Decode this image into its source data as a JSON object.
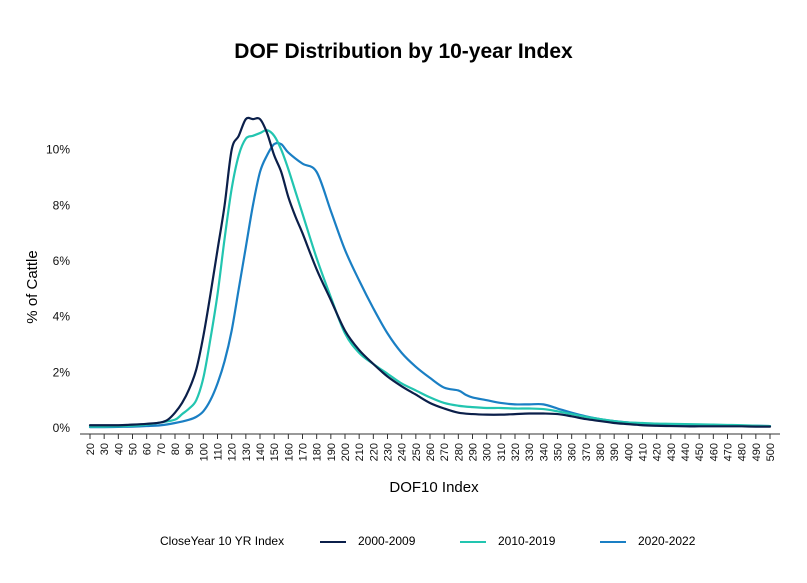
{
  "chart_data": {
    "type": "line",
    "title": "DOF Distribution by 10-year Index",
    "xlabel": "DOF10 Index",
    "ylabel": "% of Cattle",
    "x": [
      20,
      30,
      40,
      50,
      60,
      70,
      80,
      90,
      100,
      110,
      120,
      130,
      140,
      150,
      160,
      170,
      180,
      190,
      200,
      210,
      220,
      230,
      240,
      250,
      260,
      270,
      280,
      290,
      300,
      310,
      320,
      330,
      340,
      350,
      360,
      370,
      380,
      390,
      400,
      410,
      420,
      430,
      440,
      450,
      460,
      470,
      480,
      490,
      500
    ],
    "xlim": [
      20,
      500
    ],
    "ylim": [
      0,
      11.5
    ],
    "y_ticks": [
      0,
      2,
      4,
      6,
      8,
      10
    ],
    "y_tick_labels": [
      "0%",
      "2%",
      "4%",
      "6%",
      "8%",
      "10%"
    ],
    "grid": false,
    "legend": {
      "title": "CloseYear 10 YR Index",
      "position": "bottom"
    },
    "series": [
      {
        "name": "2000-2009",
        "color": "#0b1f4a",
        "x": [
          20,
          30,
          40,
          50,
          60,
          70,
          75,
          80,
          85,
          90,
          95,
          100,
          105,
          110,
          115,
          120,
          125,
          130,
          135,
          140,
          145,
          150,
          155,
          160,
          165,
          170,
          180,
          190,
          200,
          210,
          220,
          230,
          240,
          250,
          260,
          270,
          280,
          290,
          300,
          310,
          320,
          330,
          340,
          350,
          360,
          370,
          380,
          390,
          400,
          410,
          420,
          430,
          440,
          450,
          460,
          470,
          480,
          490,
          500
        ],
        "y": [
          0.1,
          0.1,
          0.1,
          0.12,
          0.15,
          0.2,
          0.3,
          0.55,
          0.9,
          1.4,
          2.1,
          3.3,
          4.8,
          6.4,
          8.0,
          10.0,
          10.5,
          11.1,
          11.1,
          11.1,
          10.6,
          9.8,
          9.2,
          8.3,
          7.6,
          7.0,
          5.7,
          4.6,
          3.5,
          2.8,
          2.3,
          1.85,
          1.5,
          1.2,
          0.9,
          0.7,
          0.55,
          0.5,
          0.48,
          0.48,
          0.5,
          0.52,
          0.52,
          0.5,
          0.42,
          0.32,
          0.25,
          0.18,
          0.14,
          0.1,
          0.08,
          0.07,
          0.06,
          0.06,
          0.06,
          0.06,
          0.06,
          0.05,
          0.05
        ]
      },
      {
        "name": "2010-2019",
        "color": "#22c5b0",
        "x": [
          20,
          30,
          40,
          50,
          60,
          70,
          80,
          85,
          90,
          95,
          100,
          105,
          110,
          115,
          120,
          125,
          130,
          135,
          140,
          145,
          150,
          155,
          160,
          165,
          170,
          180,
          190,
          200,
          210,
          220,
          230,
          240,
          250,
          260,
          270,
          280,
          290,
          300,
          310,
          320,
          330,
          340,
          350,
          360,
          370,
          380,
          390,
          400,
          410,
          420,
          430,
          440,
          450,
          460,
          470,
          480,
          490,
          500
        ],
        "y": [
          0.05,
          0.05,
          0.06,
          0.08,
          0.12,
          0.2,
          0.3,
          0.5,
          0.7,
          1.0,
          1.8,
          3.2,
          4.8,
          6.8,
          8.6,
          9.8,
          10.4,
          10.5,
          10.6,
          10.7,
          10.5,
          10.0,
          9.3,
          8.5,
          7.7,
          6.1,
          4.7,
          3.4,
          2.7,
          2.3,
          1.95,
          1.6,
          1.35,
          1.1,
          0.9,
          0.8,
          0.75,
          0.72,
          0.72,
          0.7,
          0.7,
          0.68,
          0.6,
          0.5,
          0.4,
          0.32,
          0.25,
          0.2,
          0.18,
          0.16,
          0.15,
          0.14,
          0.13,
          0.12,
          0.11,
          0.1,
          0.08,
          0.07
        ]
      },
      {
        "name": "2020-2022",
        "color": "#1a7fc4",
        "x": [
          20,
          30,
          40,
          50,
          60,
          70,
          80,
          90,
          95,
          100,
          105,
          110,
          115,
          120,
          125,
          130,
          135,
          140,
          145,
          150,
          155,
          160,
          170,
          180,
          190,
          200,
          210,
          220,
          230,
          240,
          250,
          260,
          270,
          280,
          285,
          290,
          300,
          310,
          320,
          330,
          340,
          350,
          360,
          370,
          380,
          390,
          400,
          410,
          420,
          430,
          440,
          450,
          460,
          470,
          480,
          490,
          500
        ],
        "y": [
          0.03,
          0.03,
          0.04,
          0.05,
          0.07,
          0.1,
          0.18,
          0.3,
          0.4,
          0.6,
          1.0,
          1.6,
          2.4,
          3.5,
          5.0,
          6.5,
          8.0,
          9.2,
          9.8,
          10.2,
          10.2,
          9.9,
          9.5,
          9.2,
          7.8,
          6.4,
          5.3,
          4.3,
          3.4,
          2.7,
          2.2,
          1.8,
          1.45,
          1.35,
          1.2,
          1.1,
          1.0,
          0.9,
          0.85,
          0.85,
          0.85,
          0.7,
          0.55,
          0.42,
          0.32,
          0.25,
          0.2,
          0.16,
          0.13,
          0.12,
          0.11,
          0.1,
          0.1,
          0.09,
          0.08,
          0.08,
          0.07
        ]
      }
    ]
  }
}
